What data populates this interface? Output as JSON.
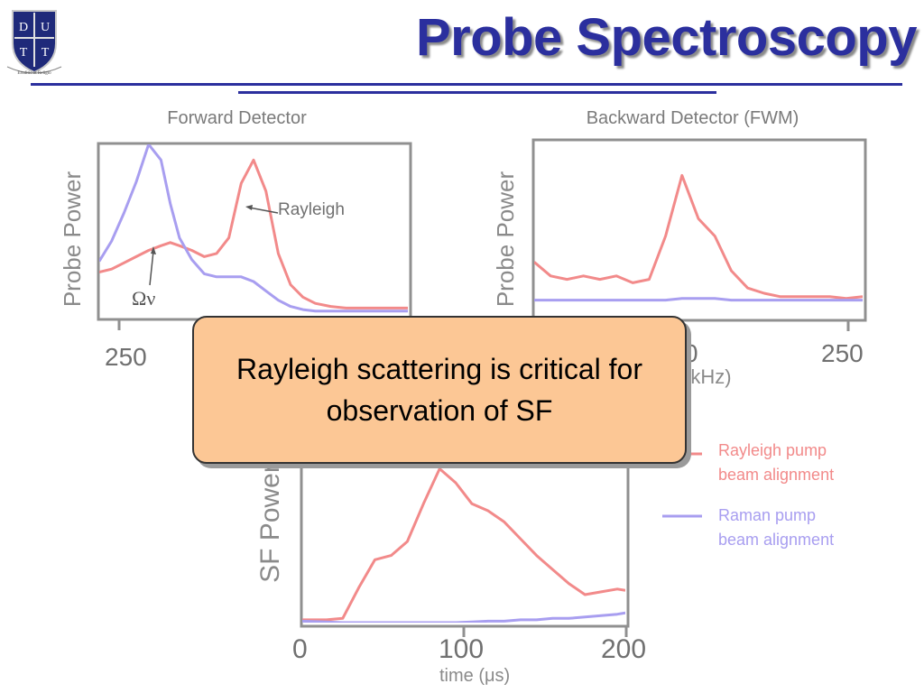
{
  "slide": {
    "title": "Probe Spectroscopy",
    "callout": "Rayleigh scattering is critical for observation of SF",
    "logo_letters": [
      "D",
      "U",
      "T",
      "T"
    ],
    "logo_motto": "Eruditio et Religio"
  },
  "colors": {
    "title": "#2b2f9e",
    "rayleigh": "#f28a8a",
    "raman": "#a89ef0",
    "axis": "#909090",
    "callout_bg": "#fcc795"
  },
  "chart_data": [
    {
      "type": "line",
      "title": "Forward Detector",
      "ylabel": "Probe Power",
      "ticks_visible": [
        "250"
      ],
      "annotations": [
        "Rayleigh",
        "Ων"
      ],
      "x": [
        0.0,
        0.04,
        0.08,
        0.12,
        0.16,
        0.2,
        0.23,
        0.26,
        0.3,
        0.34,
        0.38,
        0.42,
        0.46,
        0.5,
        0.54,
        0.58,
        0.62,
        0.66,
        0.7,
        0.75,
        0.8,
        0.85,
        0.9,
        0.95,
        1.0
      ],
      "series": [
        {
          "name": "Rayleigh pump beam alignment",
          "values": [
            0.28,
            0.3,
            0.34,
            0.38,
            0.42,
            0.45,
            0.47,
            0.45,
            0.42,
            0.38,
            0.4,
            0.5,
            0.85,
            1.0,
            0.8,
            0.4,
            0.2,
            0.12,
            0.08,
            0.06,
            0.05,
            0.05,
            0.05,
            0.05,
            0.05
          ]
        },
        {
          "name": "Raman pump beam alignment",
          "values": [
            0.35,
            0.48,
            0.66,
            0.86,
            1.1,
            1.0,
            0.72,
            0.5,
            0.36,
            0.27,
            0.25,
            0.25,
            0.25,
            0.22,
            0.16,
            0.1,
            0.06,
            0.04,
            0.03,
            0.03,
            0.03,
            0.03,
            0.03,
            0.03,
            0.03
          ]
        }
      ],
      "ylim": [
        0,
        1.1
      ],
      "grid": false
    },
    {
      "type": "line",
      "title": "Backward Detector (FWM)",
      "ylabel": "Probe Power",
      "ticks_visible": [
        "0",
        "250"
      ],
      "xlabel_fragment": "(kHz)",
      "x": [
        0.0,
        0.05,
        0.1,
        0.15,
        0.2,
        0.25,
        0.3,
        0.35,
        0.4,
        0.45,
        0.5,
        0.55,
        0.6,
        0.65,
        0.7,
        0.75,
        0.8,
        0.85,
        0.9,
        0.95,
        1.0
      ],
      "series": [
        {
          "name": "Rayleigh pump beam alignment",
          "values": [
            0.3,
            0.22,
            0.2,
            0.22,
            0.2,
            0.22,
            0.18,
            0.2,
            0.45,
            0.8,
            0.55,
            0.45,
            0.25,
            0.15,
            0.12,
            0.1,
            0.1,
            0.1,
            0.1,
            0.09,
            0.1
          ]
        },
        {
          "name": "Raman pump beam alignment",
          "values": [
            0.08,
            0.08,
            0.08,
            0.08,
            0.08,
            0.08,
            0.08,
            0.08,
            0.08,
            0.09,
            0.09,
            0.09,
            0.08,
            0.08,
            0.08,
            0.08,
            0.08,
            0.08,
            0.08,
            0.08,
            0.08
          ]
        }
      ],
      "ylim": [
        0,
        1.0
      ],
      "grid": false
    },
    {
      "type": "line",
      "title": "",
      "ylabel": "SF Power",
      "xlabel": "time (μs)",
      "xticks": [
        "0",
        "100",
        "200"
      ],
      "xlim": [
        0,
        200
      ],
      "x": [
        0,
        15,
        25,
        35,
        45,
        55,
        65,
        75,
        85,
        95,
        105,
        115,
        125,
        135,
        145,
        155,
        165,
        175,
        185,
        195,
        200
      ],
      "series": [
        {
          "name": "Rayleigh pump beam alignment",
          "values": [
            0.02,
            0.02,
            0.03,
            0.25,
            0.45,
            0.48,
            0.58,
            0.85,
            1.1,
            1.0,
            0.85,
            0.8,
            0.72,
            0.6,
            0.48,
            0.38,
            0.28,
            0.2,
            0.22,
            0.24,
            0.23
          ]
        },
        {
          "name": "Raman pump beam alignment",
          "values": [
            0.01,
            0.005,
            0.0,
            0.0,
            0.0,
            0.0,
            0.0,
            0.0,
            0.0,
            0.0,
            0.005,
            0.01,
            0.01,
            0.02,
            0.02,
            0.03,
            0.03,
            0.04,
            0.05,
            0.06,
            0.07
          ]
        }
      ],
      "ylim": [
        0,
        1.2
      ],
      "legend": {
        "placement": "right",
        "entries": [
          {
            "lines": [
              "Rayleigh pump",
              "beam alignment"
            ],
            "color": "#f28a8a"
          },
          {
            "lines": [
              "Raman pump",
              "beam alignment"
            ],
            "color": "#a89ef0"
          }
        ]
      },
      "grid": false
    }
  ]
}
